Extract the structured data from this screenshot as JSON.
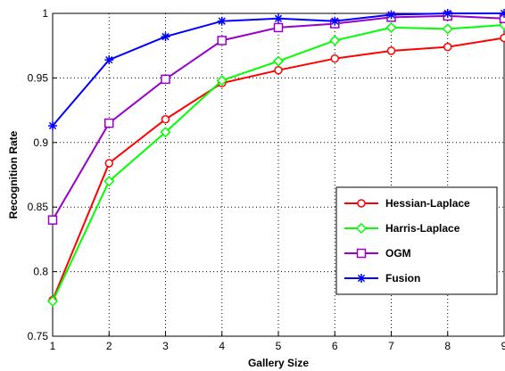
{
  "chart_data": {
    "type": "line",
    "xlabel": "Gallery Size",
    "ylabel": "Recognition Rate",
    "x": [
      1,
      2,
      3,
      4,
      5,
      6,
      7,
      8,
      9
    ],
    "xlim": [
      1,
      9
    ],
    "ylim": [
      0.75,
      1
    ],
    "x_ticks": [
      "1",
      "2",
      "3",
      "4",
      "5",
      "6",
      "7",
      "8",
      "9"
    ],
    "y_ticks": [
      "0.75",
      "0.8",
      "0.85",
      "0.9",
      "0.95",
      "1"
    ],
    "grid": true,
    "legend_position": "lower-right",
    "series": [
      {
        "name": "Hessian-Laplace",
        "color": "#ff0000",
        "marker": "circle",
        "values": [
          0.778,
          0.884,
          0.918,
          0.946,
          0.956,
          0.965,
          0.971,
          0.974,
          0.981
        ]
      },
      {
        "name": "Harris-Laplace",
        "color": "#00ff00",
        "marker": "diamond",
        "values": [
          0.777,
          0.87,
          0.908,
          0.948,
          0.963,
          0.979,
          0.989,
          0.988,
          0.991
        ]
      },
      {
        "name": "OGM",
        "color": "#9900cc",
        "marker": "square",
        "values": [
          0.84,
          0.915,
          0.949,
          0.979,
          0.989,
          0.992,
          0.997,
          0.998,
          0.996
        ]
      },
      {
        "name": "Fusion",
        "color": "#0000ff",
        "marker": "star",
        "values": [
          0.913,
          0.964,
          0.982,
          0.994,
          0.996,
          0.994,
          0.999,
          1.0,
          1.0
        ]
      }
    ]
  }
}
